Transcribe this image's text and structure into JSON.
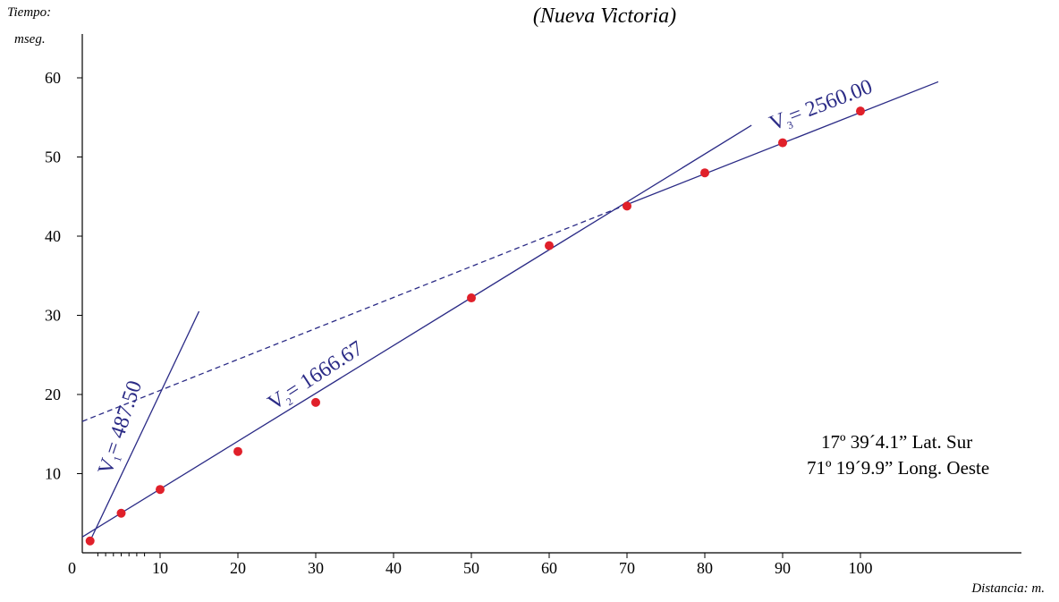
{
  "chart_data": {
    "type": "scatter",
    "title": "(Nueva Victoria)",
    "ylabel_line1": "Tiempo:",
    "ylabel_line2": "mseg.",
    "xlabel": "Distancia:  m.",
    "xlim": [
      0,
      112
    ],
    "ylim": [
      0,
      66
    ],
    "x_ticks": [
      0,
      10,
      20,
      30,
      40,
      50,
      60,
      70,
      80,
      90,
      100
    ],
    "y_ticks": [
      10,
      20,
      30,
      40,
      50,
      60
    ],
    "minor_x_ticks": [
      2,
      3,
      4,
      5,
      6,
      7,
      8
    ],
    "points": [
      {
        "x": 1,
        "y": 1.5
      },
      {
        "x": 5,
        "y": 5
      },
      {
        "x": 10,
        "y": 8
      },
      {
        "x": 20,
        "y": 12.8
      },
      {
        "x": 30,
        "y": 19
      },
      {
        "x": 50,
        "y": 32.2
      },
      {
        "x": 60,
        "y": 38.8
      },
      {
        "x": 70,
        "y": 43.8
      },
      {
        "x": 80,
        "y": 48
      },
      {
        "x": 90,
        "y": 51.8
      },
      {
        "x": 100,
        "y": 55.8
      }
    ],
    "series": [
      {
        "segment": [
          [
            1,
            1.5
          ],
          [
            15,
            30.5
          ]
        ],
        "style": "solid",
        "label_main": "V",
        "label_sub": "1",
        "label_value": "= 487.50"
      },
      {
        "segment": [
          [
            0,
            2
          ],
          [
            86,
            54
          ]
        ],
        "style": "solid",
        "label_main": "V",
        "label_sub": "2",
        "label_value": "= 1666.67"
      },
      {
        "segment": [
          [
            70,
            44
          ],
          [
            110,
            59.5
          ]
        ],
        "style": "solid",
        "label_main": "V",
        "label_sub": "3",
        "label_value": "= 2560.00"
      },
      {
        "segment": [
          [
            0,
            16.6
          ],
          [
            70,
            44
          ]
        ],
        "style": "dashed"
      }
    ],
    "annotations": [
      "17º 39´4.1” Lat. Sur",
      "71º 19´9.9” Long. Oeste"
    ],
    "colors": {
      "points": "#e0202a",
      "lines": "#2b2b86",
      "axis": "#000000"
    }
  }
}
